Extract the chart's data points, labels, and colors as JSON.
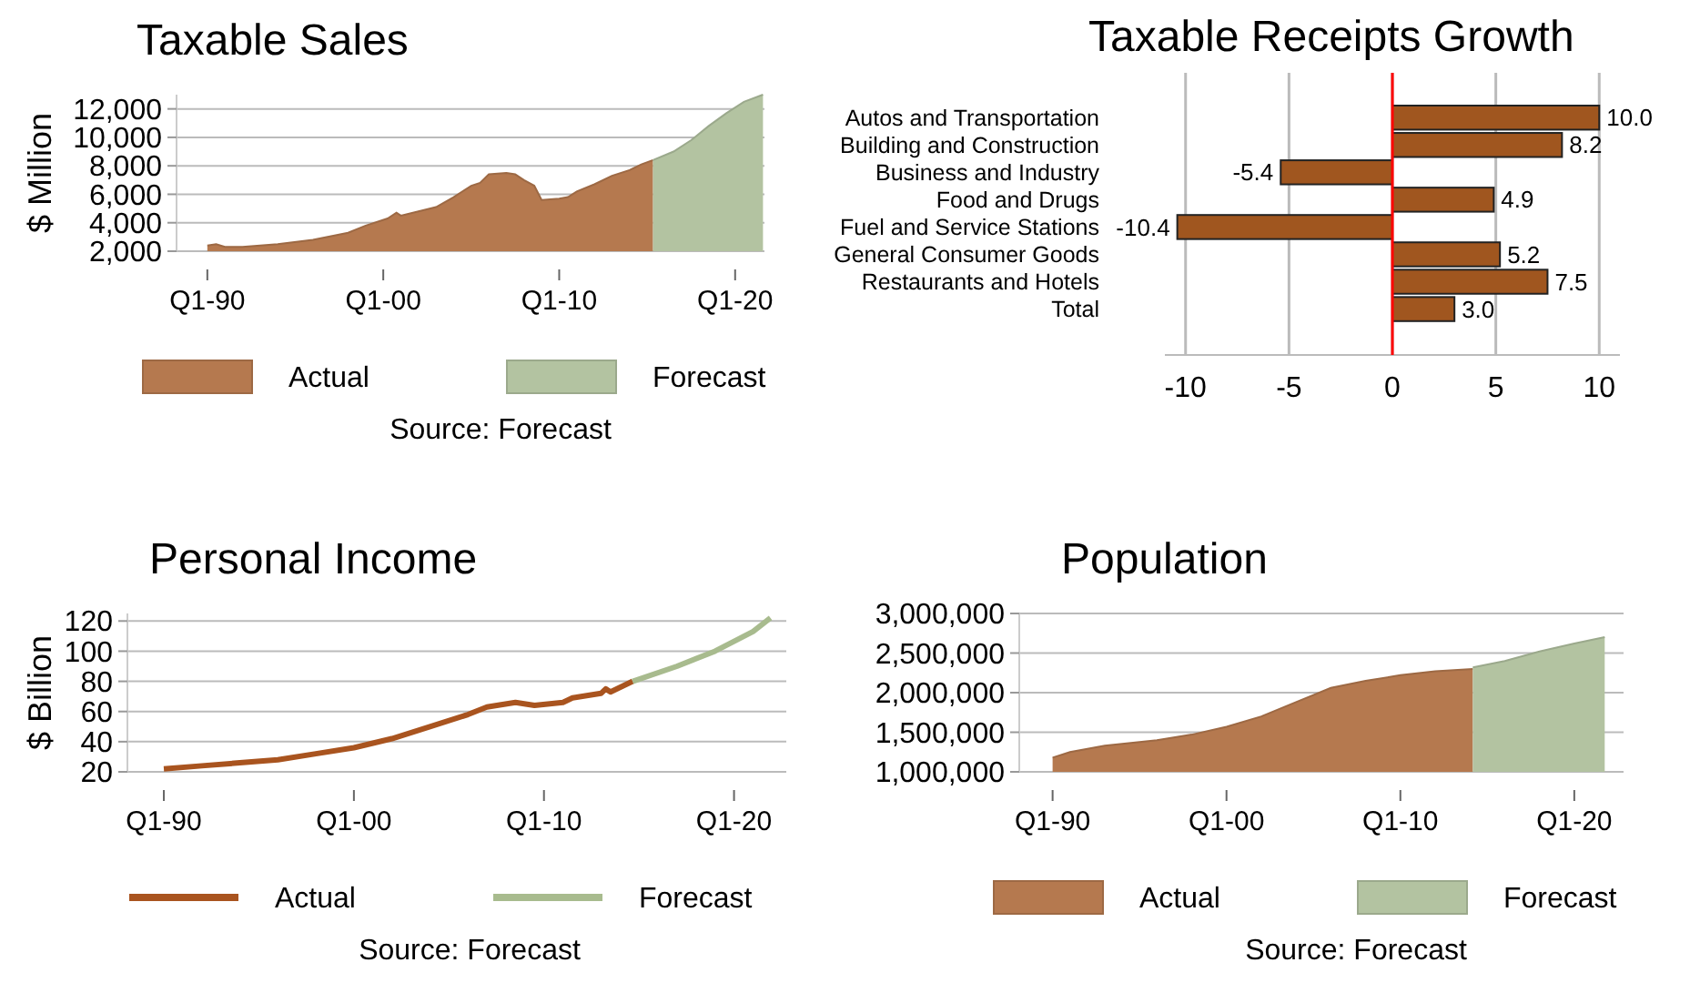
{
  "chart_data": [
    {
      "type": "area",
      "title": "Taxable Sales",
      "ylabel": "$ Million",
      "annotations": [
        "Source: Forecast"
      ],
      "legend": "bottom",
      "grid": "y",
      "xlim": [
        "1988-04",
        "2021-09"
      ],
      "xticks": [
        {
          "value": "1990-01",
          "label": "Q1-90"
        },
        {
          "value": "2000-01",
          "label": "Q1-00"
        },
        {
          "value": "2010-01",
          "label": "Q1-10"
        },
        {
          "value": "2020-01",
          "label": "Q1-20"
        }
      ],
      "ylim": [
        2000,
        13000
      ],
      "yticks": [
        {
          "value": 2000,
          "label": "2,000"
        },
        {
          "value": 4000,
          "label": "4,000"
        },
        {
          "value": 6000,
          "label": "6,000"
        },
        {
          "value": 8000,
          "label": "8,000"
        },
        {
          "value": 10000,
          "label": "10,000"
        },
        {
          "value": 12000,
          "label": "12,000"
        }
      ],
      "series": [
        {
          "name": "Actual",
          "color": "#b5794f",
          "x": [
            "1990-01",
            "1990-07",
            "1991-01",
            "1992-01",
            "1994-01",
            "1996-01",
            "1998-01",
            "1999-01",
            "2000-04",
            "2000-10",
            "2001-01",
            "2002-01",
            "2003-01",
            "2004-01",
            "2005-01",
            "2005-07",
            "2006-01",
            "2007-01",
            "2007-07",
            "2008-01",
            "2008-08",
            "2009-01",
            "2010-01",
            "2010-07",
            "2011-01",
            "2012-01",
            "2013-01",
            "2014-01",
            "2014-09",
            "2015-05"
          ],
          "values": [
            2400,
            2500,
            2300,
            2300,
            2500,
            2800,
            3300,
            3800,
            4300,
            4700,
            4500,
            4800,
            5100,
            5800,
            6600,
            6800,
            7400,
            7500,
            7400,
            7000,
            6600,
            5600,
            5700,
            5800,
            6200,
            6700,
            7300,
            7700,
            8100,
            8400
          ]
        },
        {
          "name": "Forecast",
          "color": "#b3c3a1",
          "x": [
            "2015-05",
            "2016-07",
            "2017-07",
            "2018-07",
            "2019-07",
            "2020-07",
            "2021-08"
          ],
          "values": [
            8400,
            9000,
            9800,
            10800,
            11700,
            12500,
            13000
          ]
        }
      ]
    },
    {
      "type": "bar",
      "title": "Taxable Receipts Growth",
      "orientation": "horizontal",
      "data_labels": true,
      "grid": "x",
      "xlim": [
        -11,
        11
      ],
      "xticks": [
        -10,
        -5,
        0,
        5,
        10
      ],
      "ref_lines": [
        {
          "axis": "x",
          "value": 0,
          "color": "#ff0000"
        }
      ],
      "categories": [
        "Autos and Transportation",
        "Building and Construction",
        "Business and Industry",
        "Food and Drugs",
        "Fuel and Service Stations",
        "General Consumer Goods",
        "Restaurants and Hotels",
        "Total"
      ],
      "series": [
        {
          "color": "#a0561f",
          "values": [
            10.0,
            8.2,
            -5.4,
            4.9,
            -10.4,
            5.2,
            7.5,
            3.0
          ],
          "value_labels": [
            "10.0",
            "8.2",
            "-5.4",
            "4.9",
            "-10.4",
            "5.2",
            "7.5",
            "3.0"
          ]
        }
      ]
    },
    {
      "type": "line",
      "title": "Personal Income",
      "ylabel": "$ Billion",
      "annotations": [
        "Source: Forecast"
      ],
      "legend": "bottom",
      "grid": "y",
      "xlim": [
        "1988-02",
        "2022-10"
      ],
      "xticks": [
        {
          "value": "1990-01",
          "label": "Q1-90"
        },
        {
          "value": "2000-01",
          "label": "Q1-00"
        },
        {
          "value": "2010-01",
          "label": "Q1-10"
        },
        {
          "value": "2020-01",
          "label": "Q1-20"
        }
      ],
      "ylim": [
        20,
        125
      ],
      "yticks": [
        20,
        40,
        60,
        80,
        100,
        120
      ],
      "series": [
        {
          "name": "Actual",
          "color": "#a9541f",
          "x": [
            "1990-01",
            "1992-01",
            "1994-01",
            "1996-01",
            "1998-01",
            "2000-01",
            "2002-01",
            "2004-01",
            "2006-01",
            "2007-01",
            "2008-07",
            "2009-07",
            "2011-01",
            "2011-07",
            "2013-01",
            "2013-04",
            "2013-07",
            "2014-09"
          ],
          "values": [
            22,
            24,
            26,
            28,
            32,
            36,
            42,
            50,
            58,
            63,
            66,
            64,
            66,
            69,
            72,
            75,
            73,
            80
          ]
        },
        {
          "name": "Forecast",
          "color": "#a8bb8e",
          "x": [
            "2014-09",
            "2017-01",
            "2019-01",
            "2021-01",
            "2021-12"
          ],
          "values": [
            80,
            90,
            100,
            113,
            122
          ]
        }
      ]
    },
    {
      "type": "area",
      "title": "Population",
      "annotations": [
        "Source: Forecast"
      ],
      "legend": "bottom",
      "grid": "y",
      "xlim": [
        "1988-02",
        "2022-11"
      ],
      "xticks": [
        {
          "value": "1990-01",
          "label": "Q1-90"
        },
        {
          "value": "2000-01",
          "label": "Q1-00"
        },
        {
          "value": "2010-01",
          "label": "Q1-10"
        },
        {
          "value": "2020-01",
          "label": "Q1-20"
        }
      ],
      "ylim": [
        1000000,
        3000000
      ],
      "yticks": [
        {
          "value": 1000000,
          "label": "1,000,000"
        },
        {
          "value": 1500000,
          "label": "1,500,000"
        },
        {
          "value": 2000000,
          "label": "2,000,000"
        },
        {
          "value": 2500000,
          "label": "2,500,000"
        },
        {
          "value": 3000000,
          "label": "3,000,000"
        }
      ],
      "series": [
        {
          "name": "Actual",
          "color": "#b5794f",
          "x": [
            "1990-01",
            "1991-01",
            "1993-01",
            "1996-01",
            "1998-01",
            "2000-01",
            "2002-01",
            "2004-01",
            "2006-01",
            "2008-01",
            "2010-01",
            "2012-01",
            "2014-03"
          ],
          "values": [
            1180000,
            1250000,
            1330000,
            1400000,
            1470000,
            1570000,
            1700000,
            1880000,
            2060000,
            2150000,
            2220000,
            2270000,
            2300000
          ]
        },
        {
          "name": "Forecast",
          "color": "#b3c3a1",
          "x": [
            "2014-03",
            "2016-01",
            "2018-01",
            "2020-01",
            "2021-10"
          ],
          "values": [
            2320000,
            2400000,
            2520000,
            2620000,
            2700000
          ]
        }
      ]
    }
  ]
}
